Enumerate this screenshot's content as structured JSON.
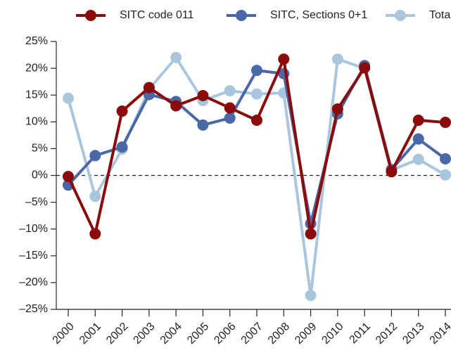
{
  "chart_data": {
    "type": "line",
    "x": [
      "2000",
      "2001",
      "2002",
      "2003",
      "2004",
      "2005",
      "2006",
      "2007",
      "2008",
      "2009",
      "2010",
      "2011",
      "2012",
      "2013",
      "2014"
    ],
    "series": [
      {
        "name": "SITC code 011",
        "color": "#8b0a0a",
        "values": [
          -0.2,
          -10.9,
          12.0,
          16.4,
          13.0,
          14.9,
          12.6,
          10.3,
          21.7,
          -10.9,
          12.4,
          20.1,
          0.7,
          10.3,
          9.9
        ]
      },
      {
        "name": "SITC, Sections 0+1",
        "color": "#4a68a8",
        "values": [
          -1.8,
          3.7,
          5.3,
          15.1,
          13.8,
          9.4,
          10.7,
          19.6,
          19.0,
          -9.0,
          11.5,
          20.5,
          1.1,
          6.8,
          3.1
        ]
      },
      {
        "name": "Total",
        "color": "#a9c6de",
        "values": [
          14.4,
          -3.9,
          4.9,
          16.1,
          22.0,
          14.0,
          15.8,
          15.2,
          15.4,
          -22.4,
          21.7,
          20.0,
          1.0,
          3.0,
          0.1
        ]
      }
    ],
    "ylim": [
      -25,
      25
    ],
    "yticks": [
      {
        "value": -25,
        "label": "–25%"
      },
      {
        "value": -20,
        "label": "–20%"
      },
      {
        "value": -15,
        "label": "–15%"
      },
      {
        "value": -10,
        "label": "–10%"
      },
      {
        "value": -5,
        "label": "–5%"
      },
      {
        "value": 0,
        "label": "0%"
      },
      {
        "value": 5,
        "label": "5%"
      },
      {
        "value": 10,
        "label": "10%"
      },
      {
        "value": 15,
        "label": "15%"
      },
      {
        "value": 20,
        "label": "20%"
      },
      {
        "value": 25,
        "label": "25%"
      }
    ],
    "zero_line": true
  }
}
